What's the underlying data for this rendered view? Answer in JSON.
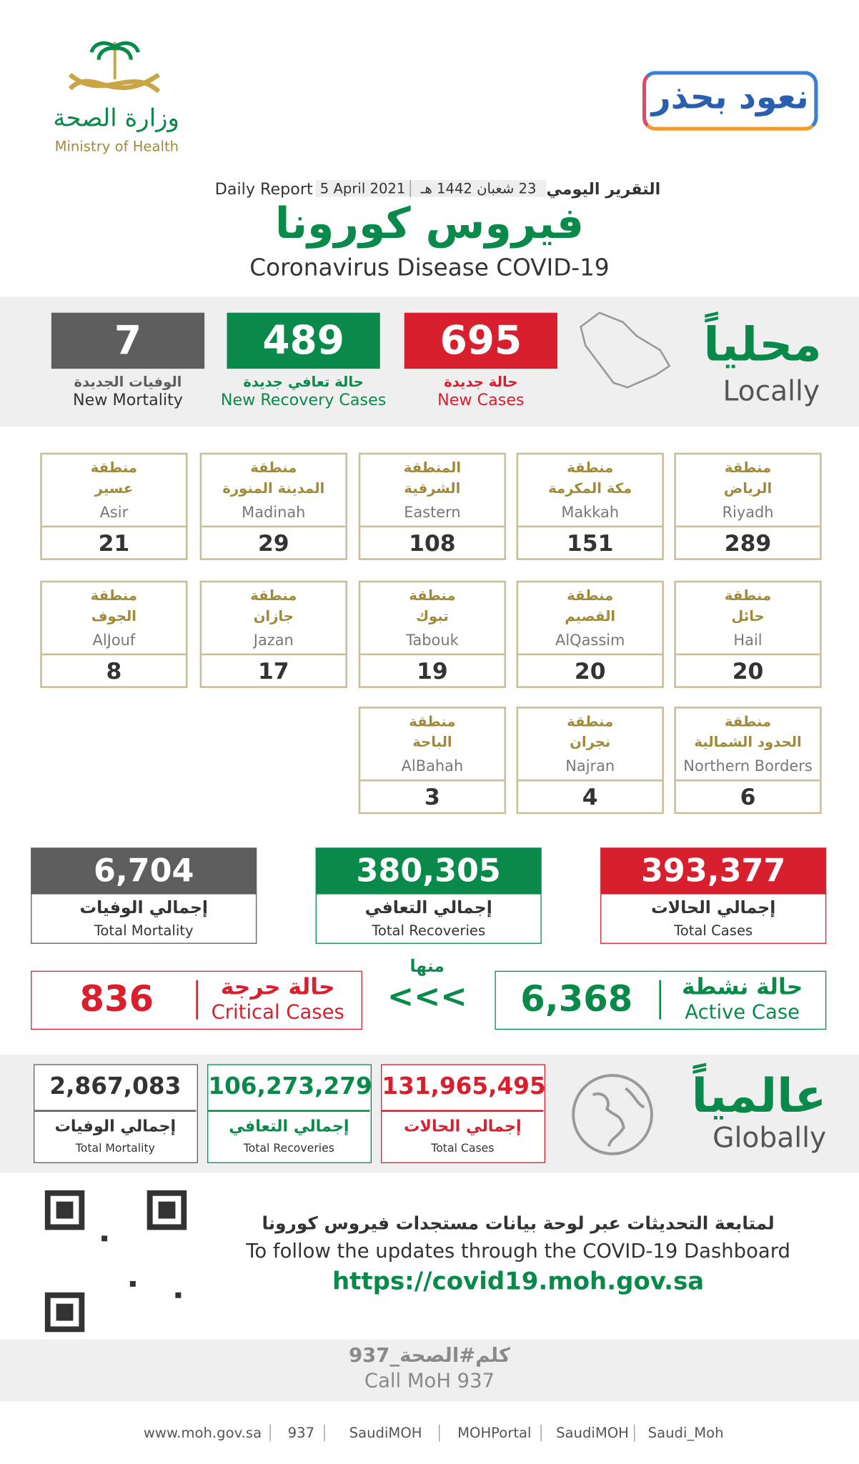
{
  "header": {
    "ministry_ar": "وزارة الصحة",
    "ministry_en": "Ministry of Health",
    "campaign": "نعود بحذر",
    "report_ar": "التقرير اليومي",
    "date_hijri": "23 شعبان 1442 هـ",
    "date": "5 April 2021",
    "report_en": "Daily Report",
    "title_ar": "فيروس كورونا",
    "title_en": "Coronavirus Disease COVID-19"
  },
  "local": {
    "heading_ar": "محلياً",
    "heading_en": "Locally",
    "stats": [
      {
        "value": "695",
        "label_ar": "حالة جديدة",
        "label_en": "New Cases"
      },
      {
        "value": "489",
        "label_ar": "حالة تعافي جديدة",
        "label_en": "New Recovery Cases"
      },
      {
        "value": "7",
        "label_ar": "الوفيات الجديدة",
        "label_en": "New Mortality"
      }
    ]
  },
  "regions": [
    {
      "prefix": "منطقة",
      "name_ar": "الرياض",
      "name_en": "Riyadh",
      "value": "289"
    },
    {
      "prefix": "منطقة",
      "name_ar": "مكة المكرمة",
      "name_en": "Makkah",
      "value": "151"
    },
    {
      "prefix": "المنطقة",
      "name_ar": "الشرقية",
      "name_en": "Eastern",
      "value": "108"
    },
    {
      "prefix": "منطقة",
      "name_ar": "المدينة المنورة",
      "name_en": "Madinah",
      "value": "29"
    },
    {
      "prefix": "منطقة",
      "name_ar": "عسير",
      "name_en": "Asir",
      "value": "21"
    },
    {
      "prefix": "منطقة",
      "name_ar": "حائل",
      "name_en": "Hail",
      "value": "20"
    },
    {
      "prefix": "منطقة",
      "name_ar": "القصيم",
      "name_en": "AlQassim",
      "value": "20"
    },
    {
      "prefix": "منطقة",
      "name_ar": "تبوك",
      "name_en": "Tabouk",
      "value": "19"
    },
    {
      "prefix": "منطقة",
      "name_ar": "جازان",
      "name_en": "Jazan",
      "value": "17"
    },
    {
      "prefix": "منطقة",
      "name_ar": "الجوف",
      "name_en": "AlJouf",
      "value": "8"
    },
    {
      "prefix": "منطقة",
      "name_ar": "الحدود الشمالية",
      "name_en": "Northern Borders",
      "value": "6"
    },
    {
      "prefix": "منطقة",
      "name_ar": "نجران",
      "name_en": "Najran",
      "value": "4"
    },
    {
      "prefix": "منطقة",
      "name_ar": "الباحة",
      "name_en": "AlBahah",
      "value": "3"
    }
  ],
  "totals": [
    {
      "value": "393,377",
      "label_ar": "إجمالي الحالات",
      "label_en": "Total Cases"
    },
    {
      "value": "380,305",
      "label_ar": "إجمالي التعافي",
      "label_en": "Total Recoveries"
    },
    {
      "value": "6,704",
      "label_ar": "إجمالي الوفيات",
      "label_en": "Total Mortality"
    }
  ],
  "active": {
    "value": "6,368",
    "label_ar": "حالة نشطة",
    "label_en": "Active Case"
  },
  "of_which": "منها",
  "arrows": "<<<",
  "critical": {
    "value": "836",
    "label_ar": "حالة حرجة",
    "label_en": "Critical Cases"
  },
  "global": {
    "heading_ar": "عالمياً",
    "heading_en": "Globally",
    "stats": [
      {
        "value": "131,965,495",
        "label_ar": "إجمالي الحالات",
        "label_en": "Total Cases"
      },
      {
        "value": "106,273,279",
        "label_ar": "إجمالي التعافي",
        "label_en": "Total Recoveries"
      },
      {
        "value": "2,867,083",
        "label_ar": "إجمالي الوفيات",
        "label_en": "Total Mortality"
      }
    ]
  },
  "dashboard": {
    "text_ar": "لمتابعة التحديثات عبر لوحة بيانات مستجدات فيروس كورونا",
    "text_en": "To follow the updates through the COVID-19 Dashboard",
    "url": "https://covid19.moh.gov.sa"
  },
  "call": {
    "text_ar": "كلم#الصحة_937",
    "text_en": "Call MoH 937"
  },
  "footer": {
    "links": [
      "www.moh.gov.sa",
      "937",
      "SaudiMOH",
      "MOHPortal",
      "SaudiMOH",
      "Saudi_Moh"
    ]
  }
}
